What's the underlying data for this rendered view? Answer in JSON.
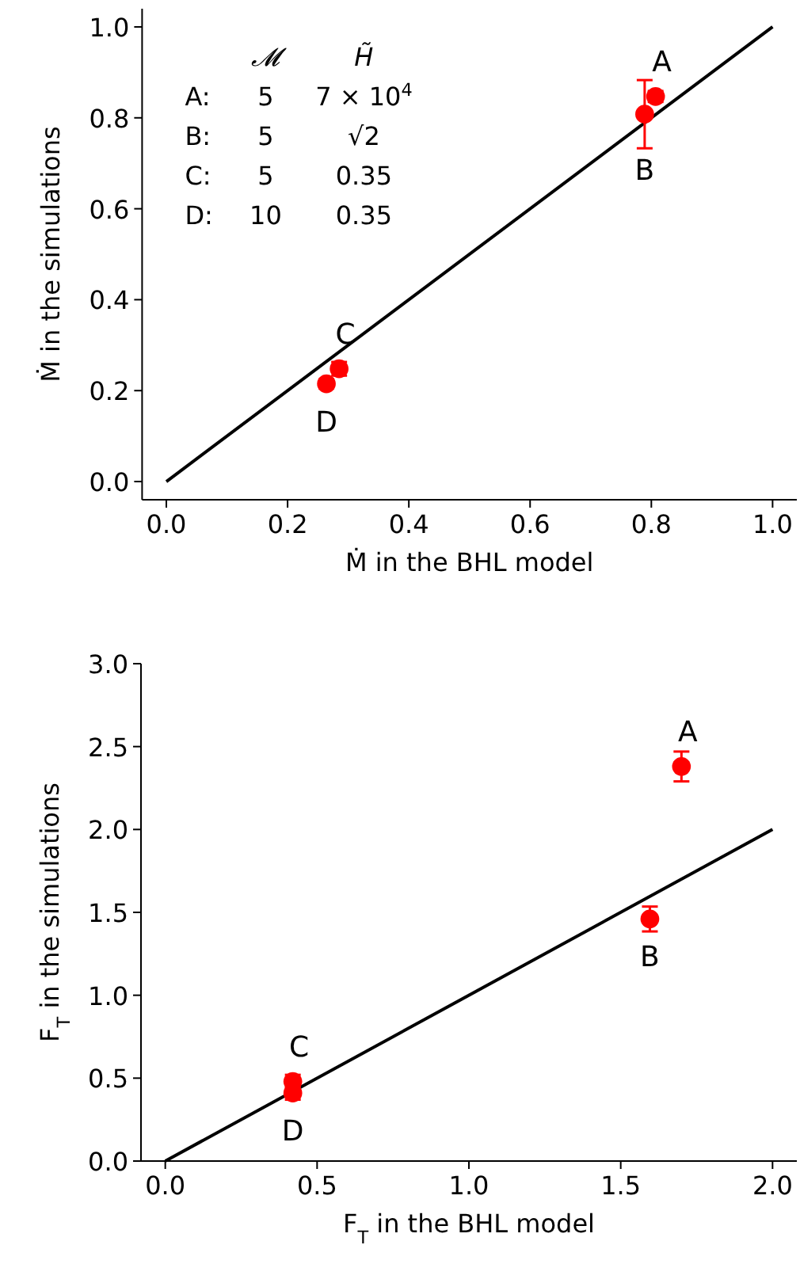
{
  "chart_data": [
    {
      "type": "scatter",
      "xlabel": "Ṁ in the BHL model",
      "ylabel": "Ṁ in the simulations",
      "xlim": [
        -0.04,
        1.04
      ],
      "ylim": [
        -0.04,
        1.04
      ],
      "xticks": [
        {
          "value": 0,
          "label": "0.0"
        },
        {
          "value": 0.2,
          "label": "0.2"
        },
        {
          "value": 0.4,
          "label": "0.4"
        },
        {
          "value": 0.6,
          "label": "0.6"
        },
        {
          "value": 0.8,
          "label": "0.8"
        },
        {
          "value": 1,
          "label": "1.0"
        }
      ],
      "yticks": [
        {
          "value": 0,
          "label": "0.0"
        },
        {
          "value": 0.2,
          "label": "0.2"
        },
        {
          "value": 0.4,
          "label": "0.4"
        },
        {
          "value": 0.6,
          "label": "0.6"
        },
        {
          "value": 0.8,
          "label": "0.8"
        },
        {
          "value": 1,
          "label": "1.0"
        }
      ],
      "grid": false,
      "series": [
        {
          "type": "line",
          "color": "#000000",
          "x": [
            0,
            1
          ],
          "values": [
            0,
            1
          ]
        },
        {
          "marker": "circle",
          "color": "#ff0000",
          "x": [
            0.807,
            0.789,
            0.285,
            0.264
          ],
          "values": [
            0.847,
            0.808,
            0.248,
            0.215
          ],
          "errors": [
            0.012,
            0.075,
            0.015,
            0.01
          ]
        }
      ],
      "annotations": [
        "𝓜",
        "H̃",
        "A:",
        "5",
        "7 × 10$^{4}$",
        "B:",
        "5",
        "√2",
        "C:",
        "5",
        "0.35",
        "D:",
        "10",
        "0.35",
        {
          "text": "A",
          "x": 0.807,
          "y": 0.847
        },
        {
          "text": "B",
          "x": 0.789,
          "y": 0.808
        },
        {
          "text": "C",
          "x": 0.285,
          "y": 0.248
        },
        {
          "text": "D",
          "x": 0.264,
          "y": 0.215
        }
      ]
    },
    {
      "type": "scatter",
      "xlabel": "F$_{T}$ in the BHL model",
      "ylabel": "F$_{T}$ in the simulations",
      "xlim": [
        -0.08,
        2.08
      ],
      "ylim": [
        0,
        3
      ],
      "xticks": [
        {
          "value": 0,
          "label": "0.0"
        },
        {
          "value": 0.5,
          "label": "0.5"
        },
        {
          "value": 1,
          "label": "1.0"
        },
        {
          "value": 1.5,
          "label": "1.5"
        },
        {
          "value": 2,
          "label": "2.0"
        }
      ],
      "yticks": [
        {
          "value": 0,
          "label": "0.0"
        },
        {
          "value": 0.5,
          "label": "0.5"
        },
        {
          "value": 1,
          "label": "1.0"
        },
        {
          "value": 1.5,
          "label": "1.5"
        },
        {
          "value": 2,
          "label": "2.0"
        },
        {
          "value": 2.5,
          "label": "2.5"
        },
        {
          "value": 3,
          "label": "3.0"
        }
      ],
      "grid": false,
      "series": [
        {
          "type": "line",
          "color": "#000000",
          "x": [
            0,
            2
          ],
          "values": [
            0,
            2
          ]
        },
        {
          "marker": "circle",
          "color": "#ff0000",
          "x": [
            1.7,
            1.596,
            0.42,
            0.42
          ],
          "values": [
            2.38,
            1.46,
            0.48,
            0.41
          ],
          "errors": [
            0.09,
            0.075,
            0.04,
            0.04
          ]
        }
      ],
      "annotations": [
        {
          "text": "A",
          "x": 1.7,
          "y": 2.38
        },
        {
          "text": "B",
          "x": 1.596,
          "y": 1.46
        },
        {
          "text": "C",
          "x": 0.42,
          "y": 0.48
        },
        {
          "text": "D",
          "x": 0.42,
          "y": 0.41
        }
      ]
    }
  ]
}
